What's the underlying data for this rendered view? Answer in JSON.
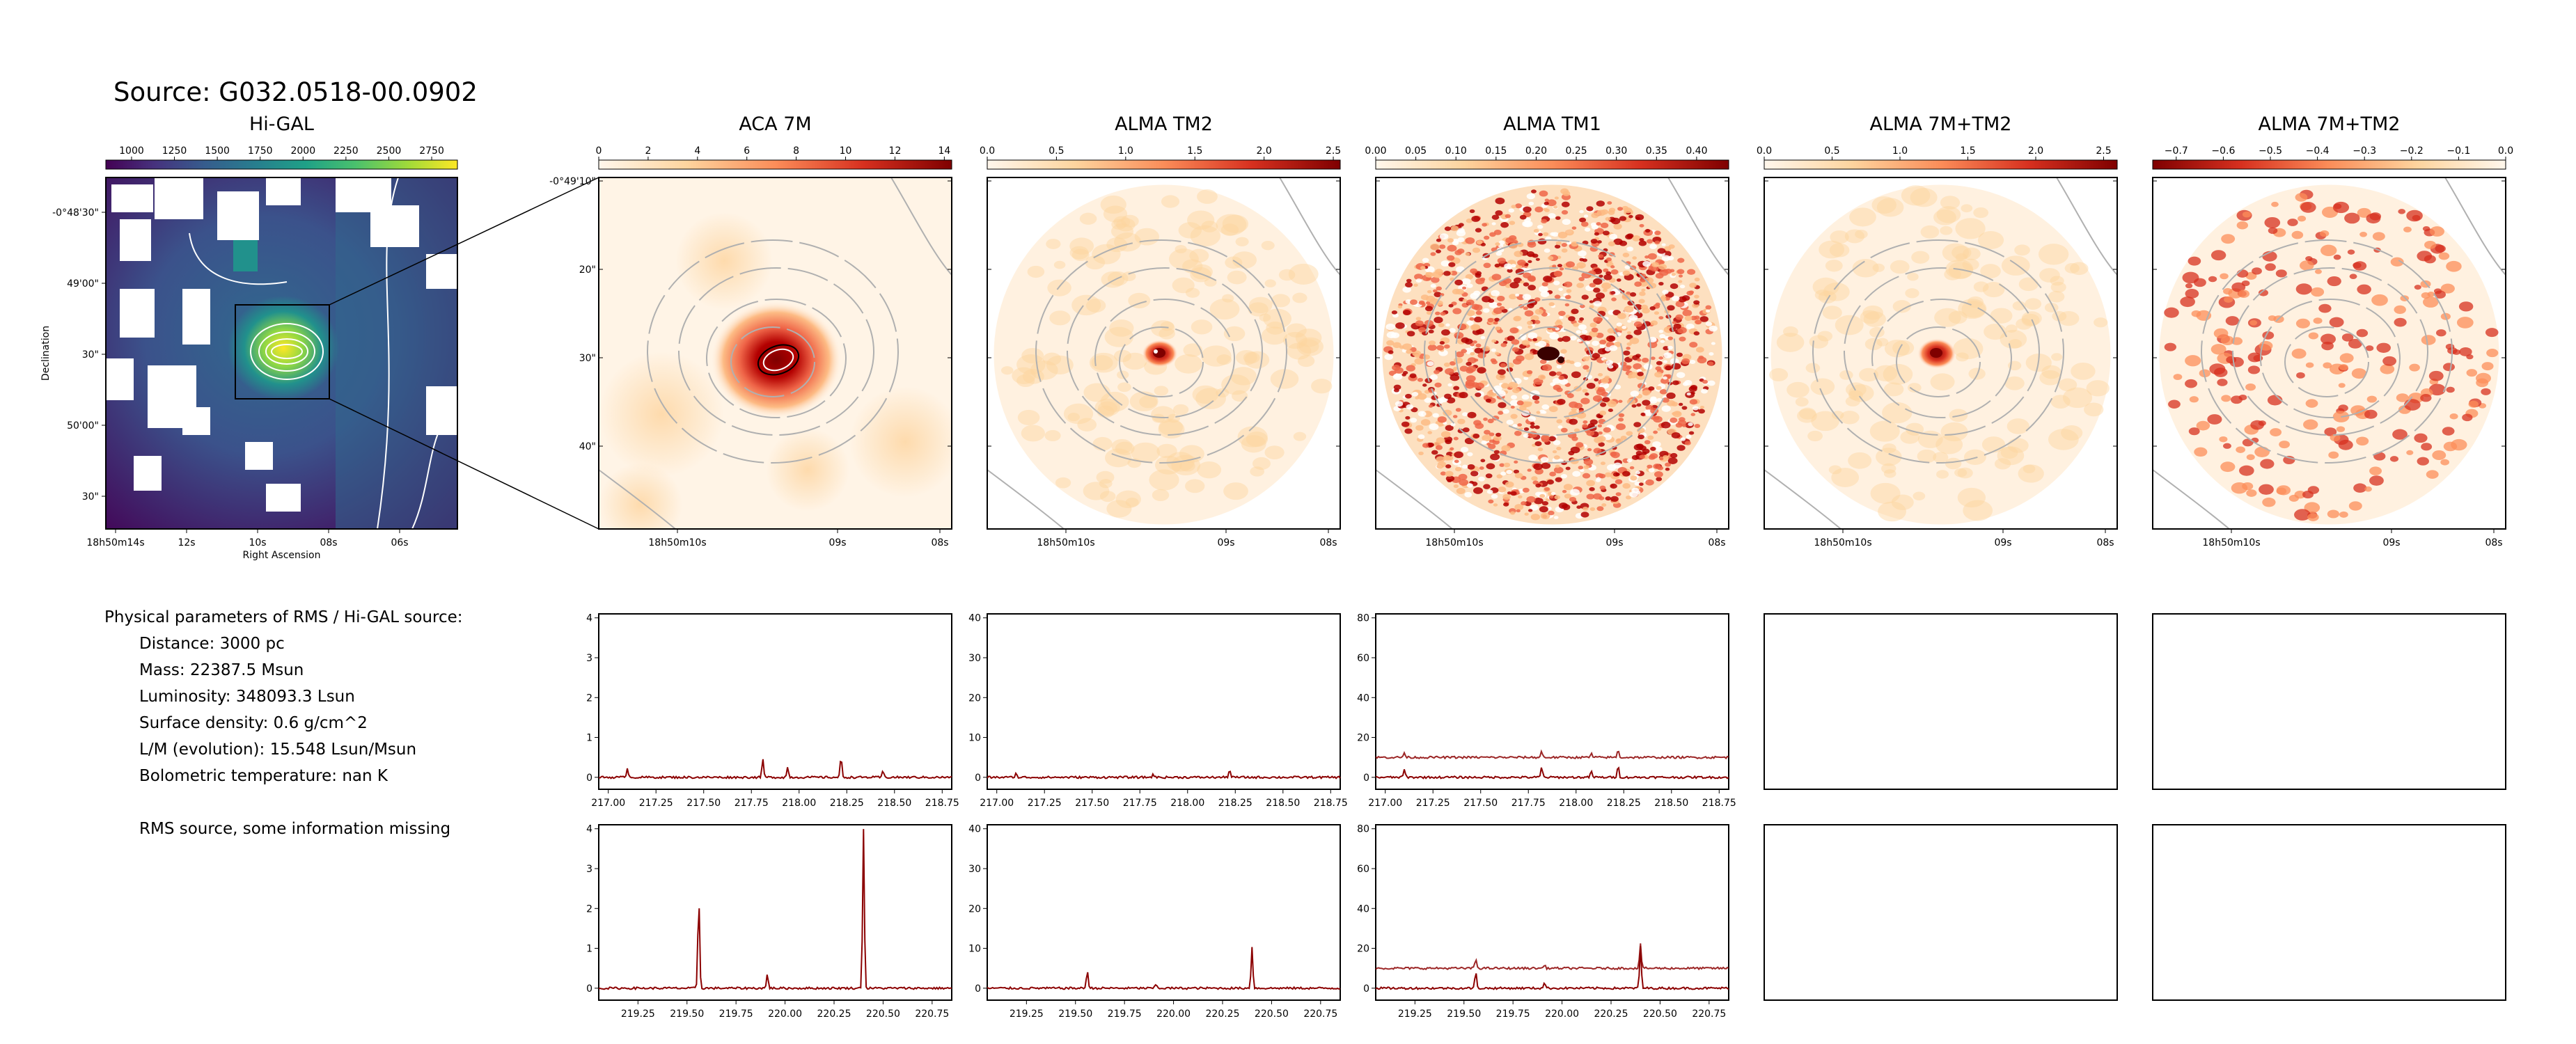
{
  "suptitle": "Source: G032.0518-00.0902",
  "panels": [
    {
      "title": "Hi-GAL",
      "cbar_ticks": [
        "1000",
        "1250",
        "1500",
        "1750",
        "2000",
        "2250",
        "2500",
        "2750"
      ]
    },
    {
      "title": "ACA 7M",
      "cbar_ticks": [
        "0",
        "2",
        "4",
        "6",
        "8",
        "10",
        "12",
        "14"
      ]
    },
    {
      "title": "ALMA TM2",
      "cbar_ticks": [
        "0.0",
        "0.5",
        "1.0",
        "1.5",
        "2.0",
        "2.5"
      ]
    },
    {
      "title": "ALMA TM1",
      "cbar_ticks": [
        "0.00",
        "0.05",
        "0.10",
        "0.15",
        "0.20",
        "0.25",
        "0.30",
        "0.35",
        "0.40"
      ]
    },
    {
      "title": "ALMA 7M+TM2",
      "cbar_ticks": [
        "0.0",
        "0.5",
        "1.0",
        "1.5",
        "2.0",
        "2.5"
      ]
    },
    {
      "title": "ALMA 7M+TM2",
      "cbar_ticks": [
        "−0.7",
        "−0.6",
        "−0.5",
        "−0.4",
        "−0.3",
        "−0.2",
        "−0.1",
        "0.0"
      ]
    }
  ],
  "higal_axes": {
    "xlabel": "Right Ascension",
    "ylabel": "Declination",
    "x_ticks": [
      "18h50m14s",
      "12s",
      "10s",
      "08s",
      "06s"
    ],
    "y_ticks": [
      "-0°48'30\"",
      "49'00\"",
      "30\"",
      "50'00\"",
      "30\""
    ]
  },
  "alma_axes": {
    "x_ticks": [
      "18h50m10s",
      "09s",
      "08s"
    ],
    "y_ticks": [
      "-0°49'10\"",
      "20\"",
      "30\"",
      "40\""
    ]
  },
  "physical": {
    "heading": "Physical parameters of RMS / Hi-GAL source:",
    "lines": [
      "Distance: 3000 pc",
      "Mass: 22387.5 Msun",
      "Luminosity: 348093.3 Lsun",
      "Surface density: 0.6 g/cm^2",
      "L/M (evolution): 15.548 Lsun/Msun",
      "Bolometric temperature: nan K"
    ],
    "note": "RMS source, some information missing"
  },
  "colors": {
    "spectrum": "#8b0000",
    "contour": "#b0b0b0",
    "higal_contour": "#ffffff"
  },
  "chart_data": [
    {
      "type": "heatmap",
      "title": "Hi-GAL",
      "colormap": "viridis",
      "clim": [
        850,
        2900
      ],
      "colorbar_position": "top"
    },
    {
      "type": "heatmap",
      "title": "ACA 7M",
      "colormap": "OrRd",
      "clim": [
        0,
        14.3
      ],
      "colorbar_position": "top"
    },
    {
      "type": "heatmap",
      "title": "ALMA TM2",
      "colormap": "OrRd",
      "clim": [
        0,
        2.55
      ],
      "colorbar_position": "top"
    },
    {
      "type": "heatmap",
      "title": "ALMA TM1",
      "colormap": "OrRd",
      "clim": [
        0,
        0.44
      ],
      "colorbar_position": "top"
    },
    {
      "type": "heatmap",
      "title": "ALMA 7M+TM2",
      "colormap": "OrRd",
      "clim": [
        0,
        2.6
      ],
      "colorbar_position": "top"
    },
    {
      "type": "heatmap",
      "title": "ALMA 7M+TM2",
      "colormap": "OrRd_r",
      "clim": [
        -0.75,
        0
      ],
      "colorbar_position": "top"
    },
    {
      "type": "line",
      "panel": "ACA 7M upper spectrum",
      "xlim": [
        216.95,
        218.8
      ],
      "ylim": [
        -0.3,
        4.1
      ],
      "x_ticks": [
        217.0,
        217.25,
        217.5,
        217.75,
        218.0,
        218.25,
        218.5,
        218.75
      ],
      "y_ticks": [
        0,
        1,
        2,
        3,
        4
      ],
      "baselines": [
        0.0
      ],
      "lines": [
        {
          "x": 217.1,
          "y": 0.25
        },
        {
          "x": 217.81,
          "y": 0.45
        },
        {
          "x": 217.94,
          "y": 0.25
        },
        {
          "x": 218.22,
          "y": 0.5
        },
        {
          "x": 218.44,
          "y": 0.15
        }
      ]
    },
    {
      "type": "line",
      "panel": "ALMA TM2 upper spectrum",
      "xlim": [
        216.95,
        218.8
      ],
      "ylim": [
        -3,
        41
      ],
      "x_ticks": [
        217.0,
        217.25,
        217.5,
        217.75,
        218.0,
        218.25,
        218.5,
        218.75
      ],
      "y_ticks": [
        0,
        10,
        20,
        30,
        40
      ],
      "baselines": [
        0.0
      ],
      "lines": [
        {
          "x": 217.1,
          "y": 1.0
        },
        {
          "x": 217.82,
          "y": 0.8
        },
        {
          "x": 218.22,
          "y": 2.0
        }
      ]
    },
    {
      "type": "line",
      "panel": "ALMA TM1 upper spectrum",
      "xlim": [
        216.95,
        218.8
      ],
      "ylim": [
        -6,
        82
      ],
      "x_ticks": [
        217.0,
        217.25,
        217.5,
        217.75,
        218.0,
        218.25,
        218.5,
        218.75
      ],
      "y_ticks": [
        0,
        20,
        40,
        60,
        80
      ],
      "baselines": [
        0.0,
        10.0
      ],
      "lines": [
        {
          "x": 217.1,
          "y": 4.0
        },
        {
          "x": 217.82,
          "y": 5.0
        },
        {
          "x": 218.08,
          "y": 3.0
        },
        {
          "x": 218.22,
          "y": 6.0
        }
      ]
    },
    {
      "type": "line",
      "panel": "ACA 7M lower spectrum",
      "xlim": [
        219.05,
        220.85
      ],
      "ylim": [
        -0.3,
        4.1
      ],
      "x_ticks": [
        219.25,
        219.5,
        219.75,
        220.0,
        220.25,
        220.5,
        220.75
      ],
      "y_ticks": [
        0,
        1,
        2,
        3,
        4
      ],
      "baselines": [
        0.0
      ],
      "lines": [
        {
          "x": 219.56,
          "y": 2.3
        },
        {
          "x": 219.91,
          "y": 0.35
        },
        {
          "x": 220.4,
          "y": 4.0
        }
      ]
    },
    {
      "type": "line",
      "panel": "ALMA TM2 lower spectrum",
      "xlim": [
        219.05,
        220.85
      ],
      "ylim": [
        -3,
        41
      ],
      "x_ticks": [
        219.25,
        219.5,
        219.75,
        220.0,
        220.25,
        220.5,
        220.75
      ],
      "y_ticks": [
        0,
        10,
        20,
        30,
        40
      ],
      "baselines": [
        0.0
      ],
      "lines": [
        {
          "x": 219.56,
          "y": 4.5
        },
        {
          "x": 219.91,
          "y": 1.0
        },
        {
          "x": 220.4,
          "y": 10.5
        }
      ]
    },
    {
      "type": "line",
      "panel": "ALMA TM1 lower spectrum",
      "xlim": [
        219.05,
        220.85
      ],
      "ylim": [
        -6,
        82
      ],
      "x_ticks": [
        219.25,
        219.5,
        219.75,
        220.0,
        220.25,
        220.5,
        220.75
      ],
      "y_ticks": [
        0,
        20,
        40,
        60,
        80
      ],
      "baselines": [
        0.0,
        10.0
      ],
      "lines": [
        {
          "x": 219.56,
          "y": 8.0
        },
        {
          "x": 219.91,
          "y": 3.0
        },
        {
          "x": 220.4,
          "y": 21.0
        }
      ]
    }
  ]
}
